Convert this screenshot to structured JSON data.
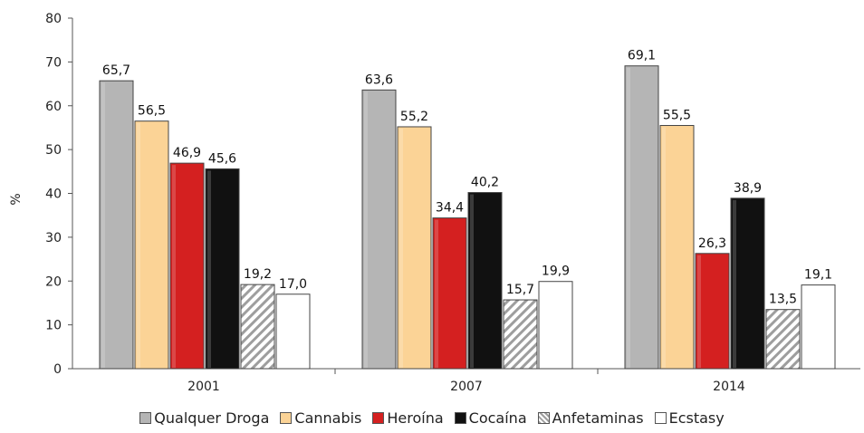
{
  "chart_data": {
    "type": "bar",
    "categories": [
      "2001",
      "2007",
      "2014"
    ],
    "series": [
      {
        "name": "Qualquer Droga",
        "values": [
          65.7,
          63.6,
          69.1
        ],
        "labels": [
          "65,7",
          "63,6",
          "69,1"
        ],
        "color": "#b5b5b5",
        "pattern": "solid"
      },
      {
        "name": "Cannabis",
        "values": [
          56.5,
          55.2,
          55.5
        ],
        "labels": [
          "56,5",
          "55,2",
          "55,5"
        ],
        "color": "#fbd396",
        "pattern": "solid"
      },
      {
        "name": "Heroína",
        "values": [
          46.9,
          34.4,
          26.3
        ],
        "labels": [
          "46,9",
          "34,4",
          "26,3"
        ],
        "color": "#d42020",
        "pattern": "solid"
      },
      {
        "name": "Cocaína",
        "values": [
          45.6,
          40.2,
          38.9
        ],
        "labels": [
          "45,6",
          "40,2",
          "38,9"
        ],
        "color": "#111111",
        "pattern": "solid"
      },
      {
        "name": "Anfetaminas",
        "values": [
          19.2,
          15.7,
          13.5
        ],
        "labels": [
          "19,2",
          "15,7",
          "13,5"
        ],
        "color": "#bdbdbd",
        "pattern": "hatch"
      },
      {
        "name": "Ecstasy",
        "values": [
          17.0,
          19.9,
          19.1
        ],
        "labels": [
          "17,0",
          "19,9",
          "19,1"
        ],
        "color": "#ffffff",
        "pattern": "solid"
      }
    ],
    "ylabel": "%",
    "xlabel": "",
    "ylim": [
      0,
      80
    ],
    "yticks": [
      "0",
      "10",
      "20",
      "30",
      "40",
      "50",
      "60",
      "70",
      "80"
    ],
    "grid": false,
    "legend_position": "bottom"
  }
}
